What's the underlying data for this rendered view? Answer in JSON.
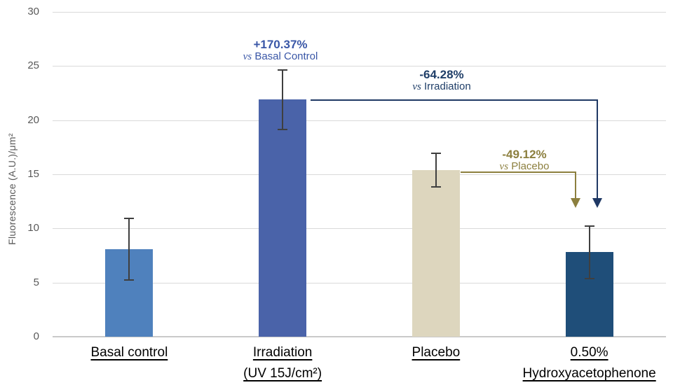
{
  "chart_data": {
    "type": "bar",
    "title": "",
    "xlabel": "",
    "ylabel": "Fluorescence (A.U.)/μm²",
    "ylim": [
      0,
      30
    ],
    "yticks": [
      30,
      25,
      20,
      15,
      10,
      5,
      0
    ],
    "grid": "horizontal",
    "legend": "none",
    "bars": [
      {
        "label_lines": [
          "Basal control"
        ],
        "value": 8.1,
        "error_high": 11.0,
        "error_low": 5.2,
        "color": "#4F81BD"
      },
      {
        "label_lines": [
          "Irradiation",
          "(UV 15J/cm²)"
        ],
        "value": 21.9,
        "error_high": 24.7,
        "error_low": 19.1,
        "color": "#4A63A9"
      },
      {
        "label_lines": [
          "Placebo"
        ],
        "value": 15.4,
        "error_high": 17.0,
        "error_low": 13.8,
        "color": "#DDD6BE"
      },
      {
        "label_lines": [
          "0.50%",
          "Hydroxyacetophenone"
        ],
        "value": 7.8,
        "error_high": 10.3,
        "error_low": 5.3,
        "color": "#1F4E79"
      }
    ],
    "annotations": [
      {
        "value": "+170.37%",
        "vs": "vs",
        "ref": "Basal Control",
        "color": "#3A57A7"
      },
      {
        "value": "-64.28%",
        "vs": "vs",
        "ref": "Irradiation",
        "color": "#1F3E68"
      },
      {
        "value": "-49.12%",
        "vs": "vs",
        "ref": "Placebo",
        "color": "#8C7F3E"
      }
    ],
    "error_bar_color": "#3F3F3F",
    "gridline_color": "#D9D9D9",
    "tick_label_color": "#595959"
  }
}
